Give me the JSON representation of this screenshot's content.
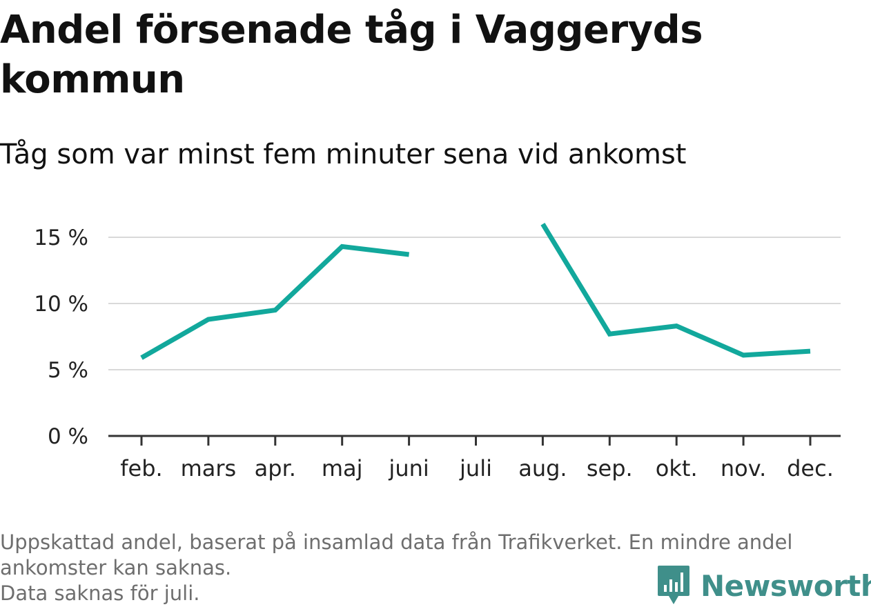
{
  "title": "Andel försenade tåg i Vaggeryds kommun",
  "subtitle": "Tåg som var minst fem minuter sena vid ankomst",
  "footnote": {
    "line1": "Uppskattad andel, baserat på insamlad data från Trafikverket. En mindre andel",
    "line2": "ankomster kan saknas.",
    "line3": "Data saknas för juli."
  },
  "brand": {
    "name": "Newsworthy",
    "color": "#3f8f8a",
    "icon": "bar-chart-speech-bubble-icon"
  },
  "chart_data": {
    "type": "line",
    "categories": [
      "feb.",
      "mars",
      "apr.",
      "maj",
      "juni",
      "juli",
      "aug.",
      "sep.",
      "okt.",
      "nov.",
      "dec."
    ],
    "series": [
      {
        "values": [
          5.9,
          8.8,
          9.5,
          14.3,
          13.7,
          null,
          16.0,
          7.7,
          8.3,
          6.1,
          6.4
        ],
        "color": "#12a89c"
      }
    ],
    "yticks": [
      {
        "value": 0,
        "label": "0 %"
      },
      {
        "value": 5,
        "label": "5 %"
      },
      {
        "value": 10,
        "label": "10 %"
      },
      {
        "value": 15,
        "label": "15 %"
      }
    ],
    "ylim": [
      0,
      16
    ],
    "grid": true,
    "legend": "none"
  }
}
